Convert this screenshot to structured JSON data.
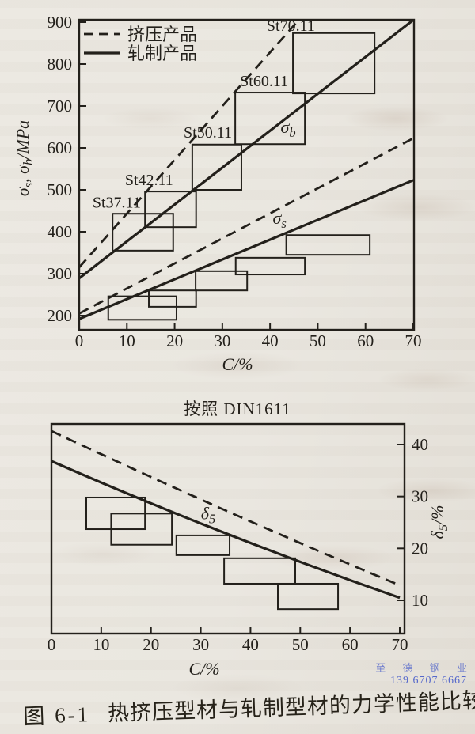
{
  "colors": {
    "paper": "#eae7e0",
    "ink": "#23201b",
    "watermark": "#5568cb"
  },
  "texts": {
    "din_note": "按照 DIN1611",
    "caption_label": "图 6-1",
    "caption_title": "热挤压型材与轧制型材的力学性能比较",
    "watermark_company": "至 德 钢 业",
    "watermark_phone": "139 6707 6667"
  },
  "chart_data": [
    {
      "type": "line",
      "title": "",
      "xlabel": "C/%",
      "ylabel": "σs, σb/MPa",
      "ylabel_rich": [
        {
          "t": "σ"
        },
        {
          "t": "s",
          "sub": true
        },
        {
          "t": ", σ"
        },
        {
          "t": "b",
          "sub": true
        },
        {
          "t": "/MPa"
        }
      ],
      "xlim": [
        0,
        70
      ],
      "ylim": [
        200,
        900
      ],
      "xticks": [
        0,
        10,
        20,
        30,
        40,
        50,
        60,
        70
      ],
      "yticks": [
        200,
        300,
        400,
        500,
        600,
        700,
        800,
        900
      ],
      "grid": false,
      "legend": {
        "position": "top-left",
        "entries": [
          {
            "line": "dashed",
            "label": "挤压产品"
          },
          {
            "line": "solid",
            "label": "轧制产品"
          }
        ]
      },
      "series": [
        {
          "name": "sigma-b-extruded",
          "line": "dashed",
          "points": [
            [
              0,
              315
            ],
            [
              46,
              905
            ]
          ]
        },
        {
          "name": "sigma-b-rolled",
          "line": "solid",
          "points": [
            [
              0,
              289
            ],
            [
              70,
              905
            ]
          ]
        },
        {
          "name": "sigma-s-extruded",
          "line": "dashed",
          "points": [
            [
              0,
              205
            ],
            [
              70,
              623
            ]
          ]
        },
        {
          "name": "sigma-s-rolled",
          "line": "solid",
          "points": [
            [
              0,
              192
            ],
            [
              70,
              523
            ]
          ]
        }
      ],
      "annotations": [
        {
          "text": "σb",
          "rich": [
            {
              "t": "σ"
            },
            {
              "t": "b",
              "sub": true
            }
          ],
          "x": 43.8,
          "y": 636
        },
        {
          "text": "σs",
          "rich": [
            {
              "t": "σ"
            },
            {
              "t": "s",
              "sub": true
            }
          ],
          "x": 42.0,
          "y": 419
        }
      ],
      "boxes": [
        {
          "label": "St37.11",
          "label_at": [
            2.8,
            458
          ],
          "x1": 7.0,
          "x2": 19.7,
          "y1": 355,
          "y2": 443
        },
        {
          "label": "St42.11",
          "label_at": [
            9.6,
            511
          ],
          "x1": 13.8,
          "x2": 24.5,
          "y1": 411,
          "y2": 496
        },
        {
          "label": "St50.11",
          "label_at": [
            21.9,
            625
          ],
          "x1": 23.7,
          "x2": 34.0,
          "y1": 500,
          "y2": 608
        },
        {
          "label": "St60.11",
          "label_at": [
            33.7,
            747
          ],
          "x1": 32.7,
          "x2": 47.3,
          "y1": 609,
          "y2": 732
        },
        {
          "label": "St70.11",
          "label_at": [
            39.3,
            879
          ],
          "x1": 44.8,
          "x2": 61.9,
          "y1": 730,
          "y2": 874
        },
        {
          "x1": 6.1,
          "x2": 20.4,
          "y1": 190,
          "y2": 246
        },
        {
          "x1": 14.6,
          "x2": 24.5,
          "y1": 221,
          "y2": 260
        },
        {
          "x1": 24.4,
          "x2": 35.2,
          "y1": 260,
          "y2": 306
        },
        {
          "x1": 32.8,
          "x2": 47.3,
          "y1": 298,
          "y2": 338
        },
        {
          "x1": 43.4,
          "x2": 60.9,
          "y1": 345,
          "y2": 392
        }
      ]
    },
    {
      "type": "line",
      "title": "按照 DIN1611",
      "xlabel": "C/%",
      "ylabel": "δ5/%",
      "ylabel_rich": [
        {
          "t": "δ"
        },
        {
          "t": "5",
          "sub": true
        },
        {
          "t": "/%"
        }
      ],
      "xlim": [
        0,
        70
      ],
      "ylim": [
        4,
        44
      ],
      "xticks": [
        0,
        10,
        20,
        30,
        40,
        50,
        60,
        70
      ],
      "yticks": [
        10,
        20,
        30,
        40
      ],
      "ytick_side": "right",
      "grid": false,
      "series": [
        {
          "name": "delta-extruded",
          "line": "dashed",
          "points": [
            [
              0,
              42.6
            ],
            [
              35,
              27.3
            ],
            [
              70,
              12.9
            ]
          ]
        },
        {
          "name": "delta-rolled",
          "line": "solid",
          "points": [
            [
              0,
              36.8
            ],
            [
              35,
              22.9
            ],
            [
              70,
              10.5
            ]
          ]
        }
      ],
      "annotations": [
        {
          "text": "δ5",
          "rich": [
            {
              "t": "δ"
            },
            {
              "t": "5",
              "sub": true
            }
          ],
          "x": 31.5,
          "y": 25.6
        }
      ],
      "boxes": [
        {
          "x1": 7.0,
          "x2": 18.8,
          "y1": 23.7,
          "y2": 29.8
        },
        {
          "x1": 12.0,
          "x2": 24.2,
          "y1": 20.7,
          "y2": 26.7
        },
        {
          "x1": 25.1,
          "x2": 35.8,
          "y1": 18.7,
          "y2": 22.5
        },
        {
          "x1": 34.7,
          "x2": 49.0,
          "y1": 13.2,
          "y2": 18.1
        },
        {
          "x1": 45.5,
          "x2": 57.6,
          "y1": 8.3,
          "y2": 13.2
        }
      ]
    }
  ]
}
